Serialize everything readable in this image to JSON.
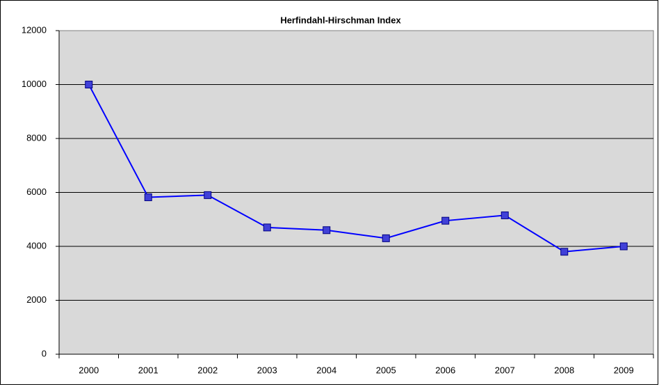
{
  "chart_data": {
    "type": "line",
    "title": "Herfindahl-Hirschman Index",
    "categories": [
      "2000",
      "2001",
      "2002",
      "2003",
      "2004",
      "2005",
      "2006",
      "2007",
      "2008",
      "2009"
    ],
    "values": [
      10000,
      5820,
      5900,
      4700,
      4600,
      4300,
      4950,
      5150,
      3800,
      4000
    ],
    "color": "#0000ff",
    "marker_color": "#4040d8",
    "ylim": [
      0,
      12000
    ],
    "yticks": [
      0,
      2000,
      4000,
      6000,
      8000,
      10000,
      12000
    ],
    "grid": true
  }
}
